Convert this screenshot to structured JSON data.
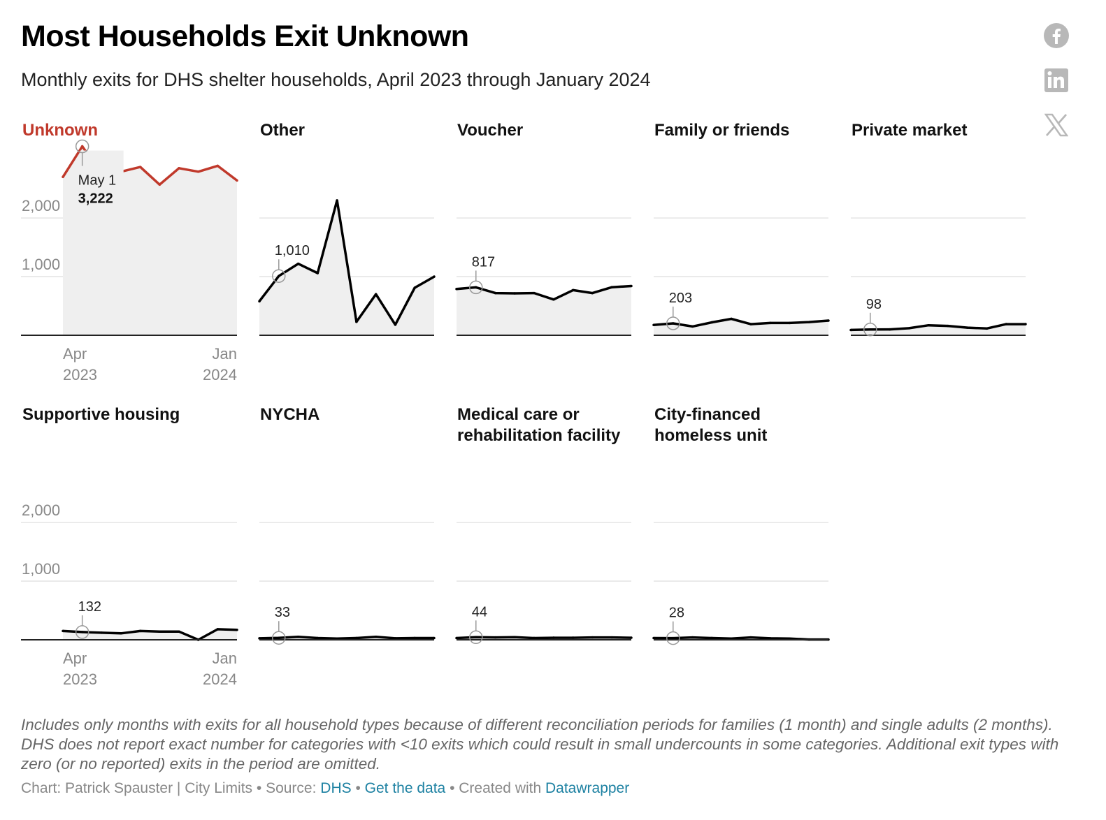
{
  "title": "Most Households Exit Unknown",
  "subtitle": "Monthly exits for DHS shelter households, April 2023 through January 2024",
  "share_icons": [
    "facebook-icon",
    "linkedin-icon",
    "x-icon"
  ],
  "colors": {
    "highlight": "#c0392b",
    "line": "#000000",
    "area": "#efefef",
    "grid": "#e4e4e4",
    "axis_text": "#888888",
    "link": "#1d81a2"
  },
  "chart_data": {
    "type": "area",
    "layout": "small-multiples",
    "x": [
      "2023-04",
      "2023-05",
      "2023-06",
      "2023-07",
      "2023-08",
      "2023-09",
      "2023-10",
      "2023-11",
      "2023-12",
      "2024-01"
    ],
    "x_ticks": [
      {
        "index": 0,
        "month": "Apr",
        "year": "2023"
      },
      {
        "index": 9,
        "month": "Jan",
        "year": "2024"
      }
    ],
    "ylim": [
      0,
      3300
    ],
    "y_ticks": [
      "2,000",
      "1,000"
    ],
    "grid": true,
    "series": [
      {
        "name": "Unknown",
        "highlight": true,
        "values": [
          2700,
          3222,
          2750,
          2790,
          2870,
          2570,
          2850,
          2790,
          2890,
          2640
        ],
        "annotation": {
          "index": 1,
          "date": "May 1",
          "value": "3,222"
        }
      },
      {
        "name": "Other",
        "values": [
          580,
          1010,
          1220,
          1060,
          2300,
          230,
          700,
          180,
          810,
          1000
        ],
        "annotation": {
          "index": 1,
          "value": "1,010"
        }
      },
      {
        "name": "Voucher",
        "values": [
          790,
          817,
          720,
          715,
          720,
          610,
          770,
          720,
          820,
          840
        ],
        "annotation": {
          "index": 1,
          "value": "817"
        }
      },
      {
        "name": "Family or friends",
        "values": [
          175,
          203,
          150,
          220,
          280,
          190,
          210,
          210,
          225,
          250
        ],
        "annotation": {
          "index": 1,
          "value": "203"
        }
      },
      {
        "name": "Private market",
        "values": [
          90,
          98,
          100,
          120,
          170,
          160,
          130,
          115,
          190,
          190
        ],
        "annotation": {
          "index": 1,
          "value": "98"
        }
      },
      {
        "name": "Supportive housing",
        "values": [
          150,
          132,
          120,
          110,
          150,
          140,
          140,
          0,
          180,
          170
        ],
        "annotation": {
          "index": 1,
          "value": "132"
        }
      },
      {
        "name": "NYCHA",
        "values": [
          25,
          33,
          50,
          30,
          20,
          30,
          50,
          25,
          30,
          30
        ],
        "annotation": {
          "index": 1,
          "value": "33"
        }
      },
      {
        "name": "Medical care or rehabilitation facility",
        "values": [
          30,
          44,
          40,
          45,
          30,
          35,
          35,
          40,
          40,
          35
        ],
        "annotation": {
          "index": 1,
          "value": "44"
        }
      },
      {
        "name": "City-financed homeless unit",
        "values": [
          30,
          28,
          40,
          30,
          20,
          40,
          25,
          20,
          5,
          5
        ],
        "annotation": {
          "index": 1,
          "value": "28"
        }
      }
    ]
  },
  "notes": "Includes only months with exits for all household types because of different reconciliation periods for families (1 month) and single adults (2 months). DHS does not report exact number for categories with <10 exits which could result in small undercounts in some categories. Additional exit types with zero (or no reported) exits in the period are omitted.",
  "byline": {
    "prefix": "Chart: Patrick Spauster | City Limits • Source: ",
    "source_link": "DHS",
    "separator1": " • ",
    "data_link": "Get the data",
    "separator2": " • Created with ",
    "tool_link": "Datawrapper"
  }
}
